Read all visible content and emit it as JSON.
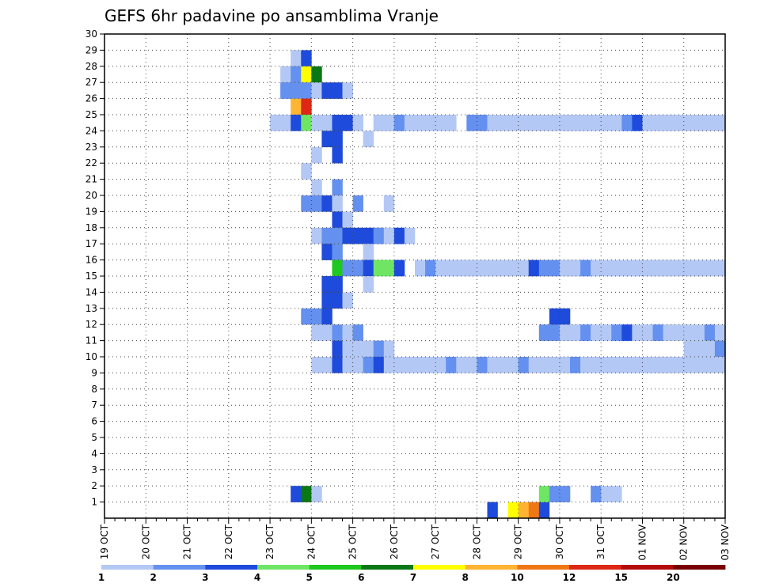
{
  "chart_data": {
    "type": "heatmap",
    "title": "GEFS 6hr padavine po ansamblima Vranje",
    "xlabel": "",
    "ylabel": "",
    "x_tick_labels": [
      "19 OCT",
      "20 OCT",
      "21 OCT",
      "22 OCT",
      "23 OCT",
      "24 OCT",
      "25 OCT",
      "26 OCT",
      "27 OCT",
      "28 OCT",
      "29 OCT",
      "30 OCT",
      "31 OCT",
      "01 NOV",
      "02 NOV",
      "03 NOV"
    ],
    "y_tick_labels": [
      "1",
      "2",
      "3",
      "4",
      "5",
      "6",
      "7",
      "8",
      "9",
      "10",
      "11",
      "12",
      "13",
      "14",
      "15",
      "16",
      "17",
      "18",
      "19",
      "20",
      "21",
      "22",
      "23",
      "24",
      "25",
      "26",
      "27",
      "28",
      "29",
      "30"
    ],
    "x_unit": "6-hour steps from 19 OCT 00Z (4 per day)",
    "xlim": [
      0,
      60
    ],
    "ylim": [
      0,
      30
    ],
    "grid": true,
    "colorbar": {
      "labels": [
        "1",
        "2",
        "3",
        "4",
        "5",
        "6",
        "7",
        "8",
        "10",
        "12",
        "15",
        "20"
      ],
      "colors": [
        "#b4c8f5",
        "#6490f0",
        "#1e4bdc",
        "#6ee664",
        "#1ec81e",
        "#0a7814",
        "#ffff00",
        "#ffb432",
        "#f07814",
        "#dc2814",
        "#b40a0a",
        "#780000"
      ]
    },
    "cells": [
      {
        "x": 37,
        "m": 0,
        "b": 2
      },
      {
        "x": 40,
        "m": 0,
        "b": 7
      },
      {
        "x": 41,
        "m": 0,
        "b": 8
      },
      {
        "x": 39,
        "m": 0,
        "b": 6
      },
      {
        "x": 42,
        "m": 0,
        "b": 2
      },
      {
        "x": 42,
        "m": 1,
        "b": 3
      },
      {
        "x": 43,
        "m": 1,
        "b": 1
      },
      {
        "x": 44,
        "m": 1,
        "b": 1
      },
      {
        "x": 47,
        "m": 1,
        "b": 1
      },
      {
        "x": 48,
        "m": 1,
        "b": 0
      },
      {
        "x": 49,
        "m": 1,
        "b": 0
      },
      {
        "x": 18,
        "m": 1,
        "b": 2
      },
      {
        "x": 19,
        "m": 1,
        "b": 5
      },
      {
        "x": 20,
        "m": 1,
        "b": 0
      },
      {
        "x": 18,
        "m": 28,
        "b": 0
      },
      {
        "x": 19,
        "m": 28,
        "b": 2
      },
      {
        "x": 17,
        "m": 27,
        "b": 0
      },
      {
        "x": 18,
        "m": 27,
        "b": 1
      },
      {
        "x": 19,
        "m": 27,
        "b": 6
      },
      {
        "x": 20,
        "m": 27,
        "b": 5
      },
      {
        "x": 17,
        "m": 26,
        "b": 1
      },
      {
        "x": 18,
        "m": 26,
        "b": 1
      },
      {
        "x": 19,
        "m": 26,
        "b": 1
      },
      {
        "x": 20,
        "m": 26,
        "b": 0
      },
      {
        "x": 21,
        "m": 26,
        "b": 2
      },
      {
        "x": 22,
        "m": 26,
        "b": 2
      },
      {
        "x": 23,
        "m": 26,
        "b": 0
      },
      {
        "x": 18,
        "m": 25,
        "b": 7
      },
      {
        "x": 19,
        "m": 25,
        "b": 9
      },
      {
        "x": 16,
        "m": 24,
        "b": 0
      },
      {
        "x": 17,
        "m": 24,
        "b": 0
      },
      {
        "x": 18,
        "m": 24,
        "b": 2
      },
      {
        "x": 19,
        "m": 24,
        "b": 3
      },
      {
        "x": 20,
        "m": 24,
        "b": 0
      },
      {
        "x": 21,
        "m": 24,
        "b": 0
      },
      {
        "x": 22,
        "m": 24,
        "b": 2
      },
      {
        "x": 23,
        "m": 24,
        "b": 2
      },
      {
        "x": 24,
        "m": 24,
        "b": 0
      },
      {
        "x": 26,
        "m": 24,
        "b": 0
      },
      {
        "x": 27,
        "m": 24,
        "b": 0
      },
      {
        "x": 28,
        "m": 24,
        "b": 1
      },
      {
        "x": 29,
        "m": 24,
        "b": 0
      },
      {
        "x": 30,
        "m": 24,
        "b": 0
      },
      {
        "x": 31,
        "m": 24,
        "b": 0
      },
      {
        "x": 32,
        "m": 24,
        "b": 0
      },
      {
        "x": 33,
        "m": 24,
        "b": 0
      },
      {
        "x": 35,
        "m": 24,
        "b": 1
      },
      {
        "x": 36,
        "m": 24,
        "b": 1
      },
      {
        "x": 37,
        "m": 24,
        "b": 0
      },
      {
        "x": 38,
        "m": 24,
        "b": 0
      },
      {
        "x": 39,
        "m": 24,
        "b": 0
      },
      {
        "x": 40,
        "m": 24,
        "b": 0
      },
      {
        "x": 41,
        "m": 24,
        "b": 0
      },
      {
        "x": 42,
        "m": 24,
        "b": 0
      },
      {
        "x": 43,
        "m": 24,
        "b": 0
      },
      {
        "x": 44,
        "m": 24,
        "b": 0
      },
      {
        "x": 45,
        "m": 24,
        "b": 0
      },
      {
        "x": 46,
        "m": 24,
        "b": 0
      },
      {
        "x": 47,
        "m": 24,
        "b": 0
      },
      {
        "x": 48,
        "m": 24,
        "b": 0
      },
      {
        "x": 49,
        "m": 24,
        "b": 0
      },
      {
        "x": 50,
        "m": 24,
        "b": 1
      },
      {
        "x": 51,
        "m": 24,
        "b": 2
      },
      {
        "x": 52,
        "m": 24,
        "b": 0
      },
      {
        "x": 53,
        "m": 24,
        "b": 0
      },
      {
        "x": 54,
        "m": 24,
        "b": 0
      },
      {
        "x": 55,
        "m": 24,
        "b": 0
      },
      {
        "x": 56,
        "m": 24,
        "b": 0
      },
      {
        "x": 57,
        "m": 24,
        "b": 0
      },
      {
        "x": 58,
        "m": 24,
        "b": 0
      },
      {
        "x": 59,
        "m": 24,
        "b": 0
      },
      {
        "x": 21,
        "m": 23,
        "b": 2
      },
      {
        "x": 22,
        "m": 23,
        "b": 2
      },
      {
        "x": 25,
        "m": 23,
        "b": 0
      },
      {
        "x": 20,
        "m": 22,
        "b": 0
      },
      {
        "x": 22,
        "m": 22,
        "b": 2
      },
      {
        "x": 19,
        "m": 21,
        "b": 0
      },
      {
        "x": 20,
        "m": 20,
        "b": 0
      },
      {
        "x": 22,
        "m": 20,
        "b": 1
      },
      {
        "x": 19,
        "m": 19,
        "b": 1
      },
      {
        "x": 20,
        "m": 19,
        "b": 1
      },
      {
        "x": 21,
        "m": 19,
        "b": 2
      },
      {
        "x": 22,
        "m": 19,
        "b": 0
      },
      {
        "x": 24,
        "m": 19,
        "b": 1
      },
      {
        "x": 27,
        "m": 19,
        "b": 0
      },
      {
        "x": 22,
        "m": 18,
        "b": 2
      },
      {
        "x": 23,
        "m": 18,
        "b": 0
      },
      {
        "x": 20,
        "m": 17,
        "b": 0
      },
      {
        "x": 21,
        "m": 17,
        "b": 1
      },
      {
        "x": 22,
        "m": 17,
        "b": 1
      },
      {
        "x": 23,
        "m": 17,
        "b": 2
      },
      {
        "x": 24,
        "m": 17,
        "b": 2
      },
      {
        "x": 25,
        "m": 17,
        "b": 2
      },
      {
        "x": 26,
        "m": 17,
        "b": 1
      },
      {
        "x": 27,
        "m": 17,
        "b": 0
      },
      {
        "x": 28,
        "m": 17,
        "b": 2
      },
      {
        "x": 29,
        "m": 17,
        "b": 0
      },
      {
        "x": 21,
        "m": 16,
        "b": 2
      },
      {
        "x": 22,
        "m": 16,
        "b": 1
      },
      {
        "x": 25,
        "m": 16,
        "b": 0
      },
      {
        "x": 22,
        "m": 15,
        "b": 4
      },
      {
        "x": 23,
        "m": 15,
        "b": 1
      },
      {
        "x": 24,
        "m": 15,
        "b": 1
      },
      {
        "x": 25,
        "m": 15,
        "b": 2
      },
      {
        "x": 26,
        "m": 15,
        "b": 3
      },
      {
        "x": 27,
        "m": 15,
        "b": 3
      },
      {
        "x": 28,
        "m": 15,
        "b": 2
      },
      {
        "x": 30,
        "m": 15,
        "b": 0
      },
      {
        "x": 31,
        "m": 15,
        "b": 1
      },
      {
        "x": 32,
        "m": 15,
        "b": 0
      },
      {
        "x": 33,
        "m": 15,
        "b": 0
      },
      {
        "x": 34,
        "m": 15,
        "b": 0
      },
      {
        "x": 35,
        "m": 15,
        "b": 0
      },
      {
        "x": 36,
        "m": 15,
        "b": 0
      },
      {
        "x": 37,
        "m": 15,
        "b": 0
      },
      {
        "x": 38,
        "m": 15,
        "b": 0
      },
      {
        "x": 39,
        "m": 15,
        "b": 0
      },
      {
        "x": 40,
        "m": 15,
        "b": 0
      },
      {
        "x": 41,
        "m": 15,
        "b": 2
      },
      {
        "x": 42,
        "m": 15,
        "b": 1
      },
      {
        "x": 43,
        "m": 15,
        "b": 1
      },
      {
        "x": 44,
        "m": 15,
        "b": 0
      },
      {
        "x": 45,
        "m": 15,
        "b": 0
      },
      {
        "x": 46,
        "m": 15,
        "b": 1
      },
      {
        "x": 47,
        "m": 15,
        "b": 0
      },
      {
        "x": 48,
        "m": 15,
        "b": 0
      },
      {
        "x": 49,
        "m": 15,
        "b": 0
      },
      {
        "x": 50,
        "m": 15,
        "b": 0
      },
      {
        "x": 51,
        "m": 15,
        "b": 0
      },
      {
        "x": 52,
        "m": 15,
        "b": 0
      },
      {
        "x": 53,
        "m": 15,
        "b": 0
      },
      {
        "x": 54,
        "m": 15,
        "b": 0
      },
      {
        "x": 55,
        "m": 15,
        "b": 0
      },
      {
        "x": 56,
        "m": 15,
        "b": 0
      },
      {
        "x": 57,
        "m": 15,
        "b": 0
      },
      {
        "x": 58,
        "m": 15,
        "b": 0
      },
      {
        "x": 59,
        "m": 15,
        "b": 0
      },
      {
        "x": 21,
        "m": 14,
        "b": 2
      },
      {
        "x": 22,
        "m": 14,
        "b": 2
      },
      {
        "x": 25,
        "m": 14,
        "b": 0
      },
      {
        "x": 21,
        "m": 13,
        "b": 2
      },
      {
        "x": 22,
        "m": 13,
        "b": 2
      },
      {
        "x": 23,
        "m": 13,
        "b": 0
      },
      {
        "x": 19,
        "m": 12,
        "b": 1
      },
      {
        "x": 20,
        "m": 12,
        "b": 1
      },
      {
        "x": 21,
        "m": 12,
        "b": 2
      },
      {
        "x": 43,
        "m": 12,
        "b": 2
      },
      {
        "x": 44,
        "m": 12,
        "b": 2
      },
      {
        "x": 20,
        "m": 11,
        "b": 0
      },
      {
        "x": 21,
        "m": 11,
        "b": 0
      },
      {
        "x": 22,
        "m": 11,
        "b": 1
      },
      {
        "x": 23,
        "m": 11,
        "b": 0
      },
      {
        "x": 24,
        "m": 11,
        "b": 1
      },
      {
        "x": 42,
        "m": 11,
        "b": 1
      },
      {
        "x": 43,
        "m": 11,
        "b": 1
      },
      {
        "x": 44,
        "m": 11,
        "b": 0
      },
      {
        "x": 45,
        "m": 11,
        "b": 0
      },
      {
        "x": 46,
        "m": 11,
        "b": 1
      },
      {
        "x": 47,
        "m": 11,
        "b": 0
      },
      {
        "x": 48,
        "m": 11,
        "b": 0
      },
      {
        "x": 49,
        "m": 11,
        "b": 1
      },
      {
        "x": 50,
        "m": 11,
        "b": 2
      },
      {
        "x": 51,
        "m": 11,
        "b": 0
      },
      {
        "x": 52,
        "m": 11,
        "b": 0
      },
      {
        "x": 53,
        "m": 11,
        "b": 1
      },
      {
        "x": 54,
        "m": 11,
        "b": 0
      },
      {
        "x": 55,
        "m": 11,
        "b": 0
      },
      {
        "x": 56,
        "m": 11,
        "b": 0
      },
      {
        "x": 57,
        "m": 11,
        "b": 0
      },
      {
        "x": 58,
        "m": 11,
        "b": 1
      },
      {
        "x": 59,
        "m": 11,
        "b": 0
      },
      {
        "x": 22,
        "m": 10,
        "b": 2
      },
      {
        "x": 23,
        "m": 10,
        "b": 0
      },
      {
        "x": 24,
        "m": 10,
        "b": 0
      },
      {
        "x": 25,
        "m": 10,
        "b": 0
      },
      {
        "x": 26,
        "m": 10,
        "b": 1
      },
      {
        "x": 27,
        "m": 10,
        "b": 0
      },
      {
        "x": 56,
        "m": 10,
        "b": 0
      },
      {
        "x": 57,
        "m": 10,
        "b": 0
      },
      {
        "x": 58,
        "m": 10,
        "b": 0
      },
      {
        "x": 59,
        "m": 10,
        "b": 1
      },
      {
        "x": 20,
        "m": 9,
        "b": 0
      },
      {
        "x": 21,
        "m": 9,
        "b": 0
      },
      {
        "x": 22,
        "m": 9,
        "b": 2
      },
      {
        "x": 23,
        "m": 9,
        "b": 0
      },
      {
        "x": 24,
        "m": 9,
        "b": 0
      },
      {
        "x": 25,
        "m": 9,
        "b": 1
      },
      {
        "x": 26,
        "m": 9,
        "b": 2
      },
      {
        "x": 27,
        "m": 9,
        "b": 0
      },
      {
        "x": 28,
        "m": 9,
        "b": 0
      },
      {
        "x": 29,
        "m": 9,
        "b": 0
      },
      {
        "x": 30,
        "m": 9,
        "b": 0
      },
      {
        "x": 31,
        "m": 9,
        "b": 0
      },
      {
        "x": 32,
        "m": 9,
        "b": 0
      },
      {
        "x": 33,
        "m": 9,
        "b": 1
      },
      {
        "x": 34,
        "m": 9,
        "b": 0
      },
      {
        "x": 35,
        "m": 9,
        "b": 0
      },
      {
        "x": 36,
        "m": 9,
        "b": 1
      },
      {
        "x": 37,
        "m": 9,
        "b": 0
      },
      {
        "x": 38,
        "m": 9,
        "b": 0
      },
      {
        "x": 39,
        "m": 9,
        "b": 0
      },
      {
        "x": 40,
        "m": 9,
        "b": 1
      },
      {
        "x": 41,
        "m": 9,
        "b": 0
      },
      {
        "x": 42,
        "m": 9,
        "b": 0
      },
      {
        "x": 43,
        "m": 9,
        "b": 0
      },
      {
        "x": 44,
        "m": 9,
        "b": 0
      },
      {
        "x": 45,
        "m": 9,
        "b": 1
      },
      {
        "x": 46,
        "m": 9,
        "b": 0
      },
      {
        "x": 47,
        "m": 9,
        "b": 0
      },
      {
        "x": 48,
        "m": 9,
        "b": 0
      },
      {
        "x": 49,
        "m": 9,
        "b": 0
      },
      {
        "x": 50,
        "m": 9,
        "b": 0
      },
      {
        "x": 51,
        "m": 9,
        "b": 0
      },
      {
        "x": 52,
        "m": 9,
        "b": 0
      },
      {
        "x": 53,
        "m": 9,
        "b": 0
      },
      {
        "x": 54,
        "m": 9,
        "b": 0
      },
      {
        "x": 55,
        "m": 9,
        "b": 0
      },
      {
        "x": 56,
        "m": 9,
        "b": 0
      },
      {
        "x": 57,
        "m": 9,
        "b": 0
      },
      {
        "x": 58,
        "m": 9,
        "b": 0
      },
      {
        "x": 59,
        "m": 9,
        "b": 0
      }
    ]
  }
}
